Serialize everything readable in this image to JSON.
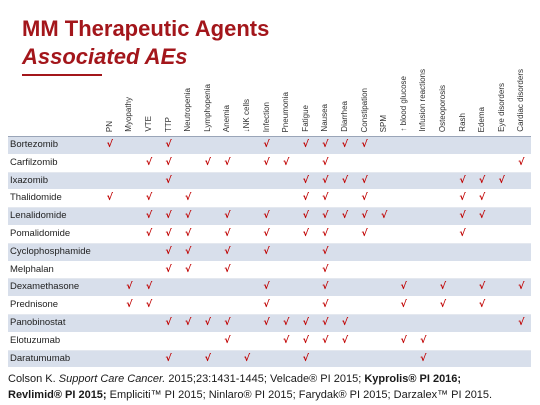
{
  "colors": {
    "title": "#a3161b",
    "check_mark": "#c00000",
    "row_band": "#d8dfeb",
    "text": "#222222"
  },
  "title": {
    "line1": "MM Therapeutic Agents",
    "line2": "Associated AEs"
  },
  "table": {
    "columns": [
      "PN",
      "Myopathy",
      "VTE",
      "TTP",
      "Neutropenia",
      "Lymphopenia",
      "Anemia",
      "↓NK cells",
      "Infection",
      "Pneumonia",
      "Fatigue",
      "Nausea",
      "Diarrhea",
      "Constipation",
      "SPM",
      "↑ blood glucose",
      "Infusion reactions",
      "Osteoporosis",
      "Rash",
      "Edema",
      "Eye disorders",
      "Cardiac disorders"
    ],
    "rows": [
      {
        "drug": "Bortezomib",
        "cells": [
          "√",
          "",
          "",
          "√",
          "",
          "",
          "",
          "",
          "√",
          "",
          "√",
          "√",
          "√",
          "√",
          "",
          "",
          "",
          "",
          "",
          "",
          "",
          ""
        ]
      },
      {
        "drug": "Carfilzomib",
        "cells": [
          "",
          "",
          "√",
          "√",
          "",
          "√",
          "√",
          "",
          "√",
          "√",
          "",
          "√",
          "",
          "",
          "",
          "",
          "",
          "",
          "",
          "",
          "",
          "√"
        ]
      },
      {
        "drug": "Ixazomib",
        "cells": [
          "",
          "",
          "",
          "√",
          "",
          "",
          "",
          "",
          "",
          "",
          "√",
          "√",
          "√",
          "√",
          "",
          "",
          "",
          "",
          "√",
          "√",
          "√",
          ""
        ]
      },
      {
        "drug": "Thalidomide",
        "cells": [
          "√",
          "",
          "√",
          "",
          "√",
          "",
          "",
          "",
          "",
          "",
          "√",
          "√",
          "",
          "√",
          "",
          "",
          "",
          "",
          "√",
          "√",
          "",
          ""
        ]
      },
      {
        "drug": "Lenalidomide",
        "cells": [
          "",
          "",
          "√",
          "√",
          "√",
          "",
          "√",
          "",
          "√",
          "",
          "√",
          "√",
          "√",
          "√",
          "√",
          "",
          "",
          "",
          "√",
          "√",
          "",
          ""
        ]
      },
      {
        "drug": "Pomalidomide",
        "cells": [
          "",
          "",
          "√",
          "√",
          "√",
          "",
          "√",
          "",
          "√",
          "",
          "√",
          "√",
          "",
          "√",
          "",
          "",
          "",
          "",
          "√",
          "",
          "",
          ""
        ]
      },
      {
        "drug": "Cyclophosphamide",
        "cells": [
          "",
          "",
          "",
          "√",
          "√",
          "",
          "√",
          "",
          "√",
          "",
          "",
          "√",
          "",
          "",
          "",
          "",
          "",
          "",
          "",
          "",
          "",
          ""
        ]
      },
      {
        "drug": "Melphalan",
        "cells": [
          "",
          "",
          "",
          "√",
          "√",
          "",
          "√",
          "",
          "",
          "",
          "",
          "√",
          "",
          "",
          "",
          "",
          "",
          "",
          "",
          "",
          "",
          ""
        ]
      },
      {
        "drug": "Dexamethasone",
        "cells": [
          "",
          "√",
          "√",
          "",
          "",
          "",
          "",
          "",
          "√",
          "",
          "",
          "√",
          "",
          "",
          "",
          "√",
          "",
          "√",
          "",
          "√",
          "",
          "√"
        ]
      },
      {
        "drug": "Prednisone",
        "cells": [
          "",
          "√",
          "√",
          "",
          "",
          "",
          "",
          "",
          "√",
          "",
          "",
          "√",
          "",
          "",
          "",
          "√",
          "",
          "√",
          "",
          "√",
          "",
          ""
        ]
      },
      {
        "drug": "Panobinostat",
        "cells": [
          "",
          "",
          "",
          "√",
          "√",
          "√",
          "√",
          "",
          "√",
          "√",
          "√",
          "√",
          "√",
          "",
          "",
          "",
          "",
          "",
          "",
          "",
          "",
          "√"
        ]
      },
      {
        "drug": "Elotuzumab",
        "cells": [
          "",
          "",
          "",
          "",
          "",
          "",
          "√",
          "",
          "",
          "√",
          "√",
          "√",
          "√",
          "",
          "",
          "√",
          "√",
          "",
          "",
          "",
          "",
          ""
        ]
      },
      {
        "drug": "Daratumumab",
        "cells": [
          "",
          "",
          "",
          "√",
          "",
          "√",
          "",
          "√",
          "",
          "",
          "√",
          "",
          "",
          "",
          "",
          "",
          "√",
          "",
          "",
          "",
          "",
          ""
        ]
      }
    ]
  },
  "citation": {
    "author": "Colson K.",
    "journal": "Support Care Cancer.",
    "ref_detail": "2015;23:1431-1445;",
    "velcade": "Velcade® PI 2015;",
    "kyprolis": "Kyprolis® PI 2016;",
    "revlimid": "Revlimid® PI 2015;",
    "others": "Empliciti™ PI 2015; Ninlaro® PI 2015; Farydak® PI 2015; Darzalex™ PI 2015."
  }
}
